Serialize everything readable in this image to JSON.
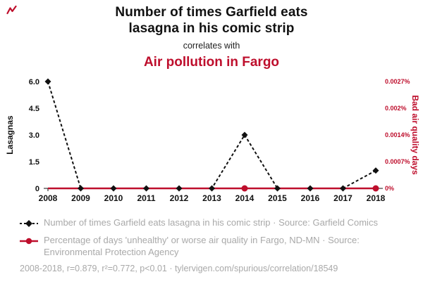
{
  "logo": {
    "icon": "squiggle-chart"
  },
  "header": {
    "title_line1": "Number of times Garfield eats",
    "title_line2": "lasagna in his comic strip",
    "connector": "correlates with",
    "subtitle": "Air pollution in Fargo"
  },
  "colors": {
    "accent_red": "#be0e2c",
    "series_black": "#111111",
    "legend_gray": "#a9a9a9"
  },
  "chart_data": {
    "type": "line",
    "x": [
      2008,
      2009,
      2010,
      2011,
      2012,
      2013,
      2014,
      2015,
      2016,
      2017,
      2018
    ],
    "series": [
      {
        "name": "Number of times Garfield eats lasagna in his comic strip",
        "axis": "left",
        "color": "#111111",
        "line_style": "dashed",
        "marker": "diamond",
        "values": [
          6,
          0,
          0,
          0,
          0,
          0,
          3,
          0,
          0,
          0,
          1
        ]
      },
      {
        "name": "Percentage of days 'unhealthy' or worse air quality in Fargo, ND-MN",
        "axis": "right",
        "color": "#be0e2c",
        "line_style": "solid",
        "marker": "circle",
        "values": [
          0,
          0,
          0,
          0,
          0,
          0,
          0,
          0,
          0,
          0,
          0
        ],
        "marker_x": [
          2014,
          2018
        ]
      }
    ],
    "left_axis": {
      "label": "Lasagnas",
      "ticks": [
        0,
        1.5,
        3.0,
        4.5,
        6.0
      ],
      "tick_labels": [
        "0",
        "1.5",
        "3.0",
        "4.5",
        "6.0"
      ],
      "range": [
        0,
        6
      ]
    },
    "right_axis": {
      "label": "Bad air quality days",
      "tick_labels": [
        "0%",
        "0.0007%",
        "0.0014%",
        "0.002%",
        "0.0027%"
      ],
      "range": [
        0,
        0.0027
      ]
    },
    "grid": false,
    "legend_position": "bottom"
  },
  "legend": {
    "items": [
      {
        "marker": "black-diamond-dashed-line",
        "text": "Number of times Garfield eats lasagna in his comic strip · Source: Garfield Comics"
      },
      {
        "marker": "red-circle-solid-line",
        "text": "Percentage of days 'unhealthy' or worse air quality in Fargo, ND-MN · Source: Environmental Protection Agency"
      }
    ]
  },
  "footer": {
    "text": "2008-2018, r=0.879, r²=0.772, p<0.01 · tylervigen.com/spurious/correlation/18549"
  }
}
